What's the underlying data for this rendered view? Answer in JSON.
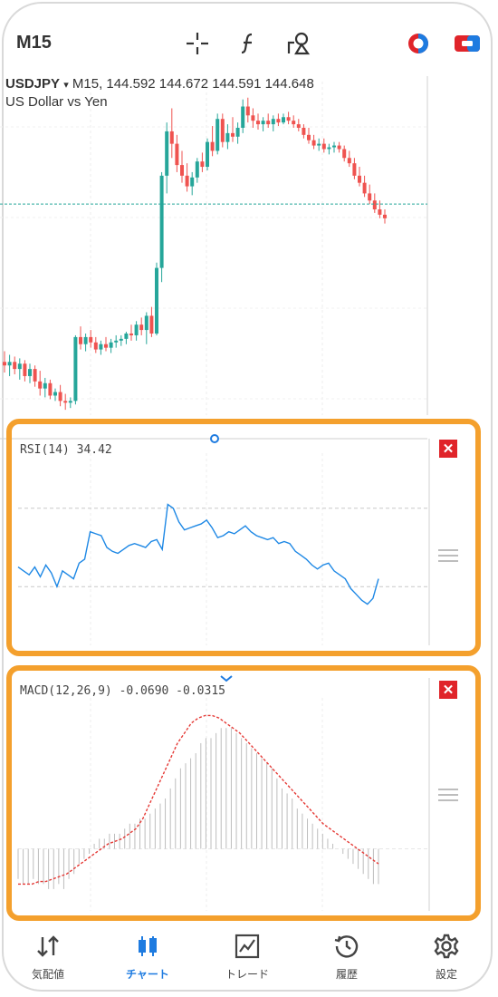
{
  "toolbar": {
    "timeframe": "M15",
    "icons": [
      "crosshair-icon",
      "function-icon",
      "objects-icon",
      "trade-toggle-icon",
      "one-click-icon"
    ]
  },
  "chart": {
    "symbol": "USDJPY",
    "symbol_arrow": "▾",
    "ohlc_line": "M15, 144.592 144.672 144.591 144.648",
    "description": "US Dollar vs Yen",
    "colors": {
      "bull": "#26a69a",
      "bear": "#ef5350",
      "rsi": "#1e88e5",
      "macd_signal": "#e53935",
      "panel_border": "#f4a02d"
    },
    "candles": [
      {
        "o": 143.5,
        "h": 143.62,
        "l": 143.38,
        "c": 143.46
      },
      {
        "o": 143.46,
        "h": 143.58,
        "l": 143.34,
        "c": 143.5
      },
      {
        "o": 143.5,
        "h": 143.56,
        "l": 143.36,
        "c": 143.42
      },
      {
        "o": 143.42,
        "h": 143.54,
        "l": 143.3,
        "c": 143.48
      },
      {
        "o": 143.48,
        "h": 143.52,
        "l": 143.28,
        "c": 143.34
      },
      {
        "o": 143.34,
        "h": 143.48,
        "l": 143.26,
        "c": 143.42
      },
      {
        "o": 143.42,
        "h": 143.46,
        "l": 143.22,
        "c": 143.28
      },
      {
        "o": 143.28,
        "h": 143.4,
        "l": 143.12,
        "c": 143.2
      },
      {
        "o": 143.2,
        "h": 143.32,
        "l": 143.1,
        "c": 143.26
      },
      {
        "o": 143.26,
        "h": 143.3,
        "l": 143.08,
        "c": 143.12
      },
      {
        "o": 143.12,
        "h": 143.2,
        "l": 143.06,
        "c": 143.16
      },
      {
        "o": 143.16,
        "h": 143.24,
        "l": 143.0,
        "c": 143.06
      },
      {
        "o": 143.06,
        "h": 143.14,
        "l": 142.96,
        "c": 143.04
      },
      {
        "o": 143.04,
        "h": 143.1,
        "l": 142.98,
        "c": 143.06
      },
      {
        "o": 143.06,
        "h": 143.8,
        "l": 143.02,
        "c": 143.78
      },
      {
        "o": 143.78,
        "h": 143.9,
        "l": 143.64,
        "c": 143.7
      },
      {
        "o": 143.7,
        "h": 143.82,
        "l": 143.62,
        "c": 143.78
      },
      {
        "o": 143.78,
        "h": 143.86,
        "l": 143.66,
        "c": 143.72
      },
      {
        "o": 143.72,
        "h": 143.78,
        "l": 143.6,
        "c": 143.64
      },
      {
        "o": 143.64,
        "h": 143.74,
        "l": 143.58,
        "c": 143.7
      },
      {
        "o": 143.7,
        "h": 143.78,
        "l": 143.62,
        "c": 143.66
      },
      {
        "o": 143.66,
        "h": 143.76,
        "l": 143.6,
        "c": 143.72
      },
      {
        "o": 143.72,
        "h": 143.8,
        "l": 143.66,
        "c": 143.74
      },
      {
        "o": 143.74,
        "h": 143.8,
        "l": 143.68,
        "c": 143.76
      },
      {
        "o": 143.76,
        "h": 143.84,
        "l": 143.7,
        "c": 143.82
      },
      {
        "o": 143.82,
        "h": 143.92,
        "l": 143.74,
        "c": 143.8
      },
      {
        "o": 143.8,
        "h": 143.96,
        "l": 143.74,
        "c": 143.92
      },
      {
        "o": 143.92,
        "h": 144.0,
        "l": 143.8,
        "c": 143.86
      },
      {
        "o": 143.86,
        "h": 144.06,
        "l": 143.7,
        "c": 144.02
      },
      {
        "o": 144.02,
        "h": 144.12,
        "l": 143.78,
        "c": 143.82
      },
      {
        "o": 143.82,
        "h": 144.62,
        "l": 143.8,
        "c": 144.56
      },
      {
        "o": 144.56,
        "h": 145.64,
        "l": 144.4,
        "c": 145.6
      },
      {
        "o": 145.6,
        "h": 146.2,
        "l": 145.4,
        "c": 146.1
      },
      {
        "o": 146.1,
        "h": 146.36,
        "l": 145.8,
        "c": 145.96
      },
      {
        "o": 145.96,
        "h": 146.06,
        "l": 145.64,
        "c": 145.72
      },
      {
        "o": 145.72,
        "h": 145.88,
        "l": 145.52,
        "c": 145.6
      },
      {
        "o": 145.6,
        "h": 145.74,
        "l": 145.42,
        "c": 145.48
      },
      {
        "o": 145.48,
        "h": 145.64,
        "l": 145.38,
        "c": 145.58
      },
      {
        "o": 145.58,
        "h": 145.8,
        "l": 145.52,
        "c": 145.76
      },
      {
        "o": 145.76,
        "h": 145.86,
        "l": 145.64,
        "c": 145.7
      },
      {
        "o": 145.7,
        "h": 146.02,
        "l": 145.66,
        "c": 145.98
      },
      {
        "o": 145.98,
        "h": 146.16,
        "l": 145.82,
        "c": 145.88
      },
      {
        "o": 145.88,
        "h": 146.3,
        "l": 145.84,
        "c": 146.24
      },
      {
        "o": 146.24,
        "h": 146.3,
        "l": 145.92,
        "c": 145.98
      },
      {
        "o": 145.98,
        "h": 146.18,
        "l": 145.9,
        "c": 146.08
      },
      {
        "o": 146.08,
        "h": 146.26,
        "l": 145.98,
        "c": 146.04
      },
      {
        "o": 146.04,
        "h": 146.2,
        "l": 145.96,
        "c": 146.14
      },
      {
        "o": 146.14,
        "h": 146.46,
        "l": 146.08,
        "c": 146.38
      },
      {
        "o": 146.38,
        "h": 146.48,
        "l": 146.2,
        "c": 146.28
      },
      {
        "o": 146.28,
        "h": 146.36,
        "l": 146.14,
        "c": 146.22
      },
      {
        "o": 146.22,
        "h": 146.3,
        "l": 146.12,
        "c": 146.18
      },
      {
        "o": 146.18,
        "h": 146.26,
        "l": 146.1,
        "c": 146.22
      },
      {
        "o": 146.22,
        "h": 146.3,
        "l": 146.14,
        "c": 146.18
      },
      {
        "o": 146.18,
        "h": 146.28,
        "l": 146.1,
        "c": 146.24
      },
      {
        "o": 146.24,
        "h": 146.3,
        "l": 146.16,
        "c": 146.2
      },
      {
        "o": 146.2,
        "h": 146.3,
        "l": 146.18,
        "c": 146.26
      },
      {
        "o": 146.26,
        "h": 146.32,
        "l": 146.18,
        "c": 146.22
      },
      {
        "o": 146.22,
        "h": 146.28,
        "l": 146.14,
        "c": 146.18
      },
      {
        "o": 146.18,
        "h": 146.24,
        "l": 146.1,
        "c": 146.14
      },
      {
        "o": 146.14,
        "h": 146.18,
        "l": 146.02,
        "c": 146.06
      },
      {
        "o": 146.06,
        "h": 146.14,
        "l": 145.96,
        "c": 146.0
      },
      {
        "o": 146.0,
        "h": 146.06,
        "l": 145.9,
        "c": 145.94
      },
      {
        "o": 145.94,
        "h": 146.02,
        "l": 145.88,
        "c": 145.96
      },
      {
        "o": 145.96,
        "h": 146.02,
        "l": 145.86,
        "c": 145.9
      },
      {
        "o": 145.9,
        "h": 145.96,
        "l": 145.84,
        "c": 145.92
      },
      {
        "o": 145.92,
        "h": 145.98,
        "l": 145.86,
        "c": 145.94
      },
      {
        "o": 145.94,
        "h": 145.98,
        "l": 145.86,
        "c": 145.9
      },
      {
        "o": 145.9,
        "h": 145.94,
        "l": 145.76,
        "c": 145.8
      },
      {
        "o": 145.8,
        "h": 145.88,
        "l": 145.7,
        "c": 145.74
      },
      {
        "o": 145.74,
        "h": 145.8,
        "l": 145.56,
        "c": 145.6
      },
      {
        "o": 145.6,
        "h": 145.7,
        "l": 145.48,
        "c": 145.52
      },
      {
        "o": 145.52,
        "h": 145.6,
        "l": 145.36,
        "c": 145.4
      },
      {
        "o": 145.4,
        "h": 145.5,
        "l": 145.28,
        "c": 145.32
      },
      {
        "o": 145.32,
        "h": 145.4,
        "l": 145.18,
        "c": 145.22
      },
      {
        "o": 145.22,
        "h": 145.32,
        "l": 145.12,
        "c": 145.16
      },
      {
        "o": 145.16,
        "h": 145.22,
        "l": 145.06,
        "c": 145.12
      }
    ],
    "price_range": [
      142.9,
      146.6
    ],
    "current_price": 145.28
  },
  "rsi": {
    "label": "RSI(14) 34.42",
    "values": [
      40,
      38,
      36,
      40,
      35,
      41,
      37,
      30,
      38,
      36,
      34,
      42,
      44,
      58,
      57,
      56,
      50,
      48,
      47,
      49,
      51,
      52,
      51,
      50,
      53,
      54,
      49,
      72,
      70,
      63,
      59,
      60,
      61,
      62,
      64,
      60,
      55,
      56,
      58,
      57,
      59,
      61,
      58,
      56,
      55,
      54,
      55,
      52,
      53,
      52,
      48,
      46,
      44,
      41,
      39,
      41,
      42,
      38,
      36,
      34,
      29,
      26,
      23,
      21,
      24,
      34
    ],
    "levels": [
      70,
      30
    ],
    "range": [
      0,
      100
    ]
  },
  "macd": {
    "label": "MACD(12,26,9) -0.0690 -0.0315",
    "histogram": [
      -0.06,
      -0.07,
      -0.07,
      -0.06,
      -0.07,
      -0.07,
      -0.08,
      -0.08,
      -0.07,
      -0.08,
      -0.06,
      -0.05,
      -0.03,
      -0.02,
      -0.01,
      0.01,
      0.02,
      0.02,
      0.03,
      0.03,
      0.03,
      0.04,
      0.05,
      0.05,
      0.06,
      0.06,
      0.07,
      0.08,
      0.09,
      0.1,
      0.12,
      0.14,
      0.16,
      0.17,
      0.18,
      0.19,
      0.21,
      0.22,
      0.22,
      0.23,
      0.24,
      0.24,
      0.24,
      0.23,
      0.22,
      0.21,
      0.2,
      0.19,
      0.18,
      0.17,
      0.16,
      0.14,
      0.12,
      0.11,
      0.1,
      0.08,
      0.07,
      0.06,
      0.05,
      0.04,
      0.03,
      0.02,
      0.01,
      0.0,
      -0.01,
      -0.02,
      -0.03,
      -0.04,
      -0.05,
      -0.06,
      -0.07,
      -0.07
    ],
    "signal": [
      -0.07,
      -0.07,
      -0.07,
      -0.065,
      -0.065,
      -0.06,
      -0.055,
      -0.05,
      -0.04,
      -0.03,
      -0.02,
      -0.01,
      0.0,
      0.01,
      0.015,
      0.02,
      0.03,
      0.04,
      0.06,
      0.09,
      0.12,
      0.15,
      0.18,
      0.21,
      0.23,
      0.25,
      0.26,
      0.265,
      0.265,
      0.26,
      0.25,
      0.24,
      0.23,
      0.215,
      0.2,
      0.185,
      0.17,
      0.155,
      0.14,
      0.125,
      0.11,
      0.095,
      0.08,
      0.065,
      0.05,
      0.04,
      0.03,
      0.02,
      0.01,
      0.0,
      -0.01,
      -0.02,
      -0.03
    ],
    "range": [
      -0.1,
      0.3
    ]
  },
  "nav": [
    {
      "label": "気配値",
      "icon": "quotes-icon",
      "active": false
    },
    {
      "label": "チャート",
      "icon": "chart-icon",
      "active": true
    },
    {
      "label": "トレード",
      "icon": "trade-icon",
      "active": false
    },
    {
      "label": "履歴",
      "icon": "history-icon",
      "active": false
    },
    {
      "label": "設定",
      "icon": "settings-icon",
      "active": false
    }
  ]
}
